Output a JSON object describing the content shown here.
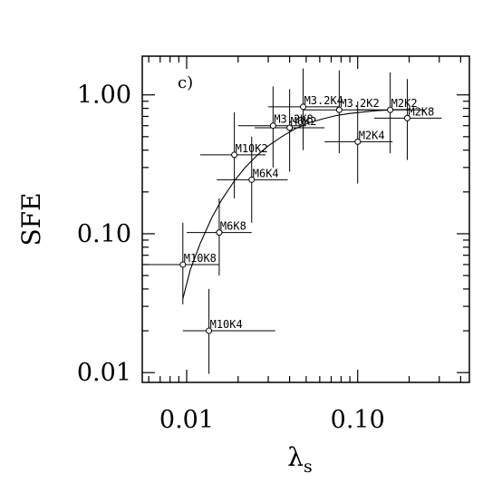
{
  "chart_data": {
    "type": "scatter",
    "panel_label": "c)",
    "xlabel": "λ",
    "xlabel_sub": "s",
    "ylabel": "SFE",
    "xscale": "log",
    "yscale": "log",
    "xlim": [
      0.0055,
      0.45
    ],
    "ylim": [
      0.0085,
      1.9
    ],
    "xticks": [
      {
        "value": 0.01,
        "label": "0.01"
      },
      {
        "value": 0.1,
        "label": "0.10"
      }
    ],
    "yticks": [
      {
        "value": 0.01,
        "label": "0.01"
      },
      {
        "value": 0.1,
        "label": "0.10"
      },
      {
        "value": 1.0,
        "label": "1.00"
      }
    ],
    "grid": false,
    "points": [
      {
        "label": "M10K8",
        "x": 0.0095,
        "y": 0.06,
        "xerr": [
          0.0055,
          0.0155
        ],
        "yerr": [
          0.031,
          0.12
        ]
      },
      {
        "label": "M10K4",
        "x": 0.0135,
        "y": 0.02,
        "xerr": [
          0.0095,
          0.033
        ],
        "yerr": [
          0.0098,
          0.04
        ]
      },
      {
        "label": "M6K8",
        "x": 0.0155,
        "y": 0.102,
        "xerr": [
          0.01,
          0.024
        ],
        "yerr": [
          0.05,
          0.18
        ]
      },
      {
        "label": "M10K2",
        "x": 0.019,
        "y": 0.37,
        "xerr": [
          0.012,
          0.029
        ],
        "yerr": [
          0.18,
          0.75
        ]
      },
      {
        "label": "M6K4",
        "x": 0.024,
        "y": 0.245,
        "xerr": [
          0.015,
          0.039
        ],
        "yerr": [
          0.12,
          0.5
        ]
      },
      {
        "label": "M3.2K8",
        "x": 0.032,
        "y": 0.6,
        "xerr": [
          0.02,
          0.05
        ],
        "yerr": [
          0.3,
          1.15
        ]
      },
      {
        "label": "M6K2",
        "x": 0.04,
        "y": 0.58,
        "xerr": [
          0.025,
          0.064
        ],
        "yerr": [
          0.28,
          1.1
        ]
      },
      {
        "label": "M3.2K4",
        "x": 0.048,
        "y": 0.82,
        "xerr": [
          0.03,
          0.078
        ],
        "yerr": [
          0.4,
          1.55
        ]
      },
      {
        "label": "M3.2K2",
        "x": 0.078,
        "y": 0.78,
        "xerr": [
          0.048,
          0.125
        ],
        "yerr": [
          0.38,
          1.5
        ]
      },
      {
        "label": "M2K4",
        "x": 0.1,
        "y": 0.46,
        "xerr": [
          0.064,
          0.16
        ],
        "yerr": [
          0.23,
          0.9
        ]
      },
      {
        "label": "M2K2",
        "x": 0.155,
        "y": 0.78,
        "xerr": [
          0.098,
          0.245
        ],
        "yerr": [
          0.38,
          1.45
        ]
      },
      {
        "label": "M2K8",
        "x": 0.195,
        "y": 0.68,
        "xerr": [
          0.125,
          0.31
        ],
        "yerr": [
          0.34,
          1.3
        ]
      }
    ],
    "curve": {
      "x": [
        0.0095,
        0.0105,
        0.012,
        0.014,
        0.016,
        0.019,
        0.022,
        0.026,
        0.03,
        0.036,
        0.043,
        0.052,
        0.062,
        0.075,
        0.09,
        0.11,
        0.13,
        0.16,
        0.2
      ],
      "y": [
        0.034,
        0.055,
        0.085,
        0.13,
        0.175,
        0.24,
        0.3,
        0.37,
        0.43,
        0.5,
        0.57,
        0.63,
        0.67,
        0.71,
        0.735,
        0.755,
        0.77,
        0.78,
        0.785
      ]
    }
  }
}
